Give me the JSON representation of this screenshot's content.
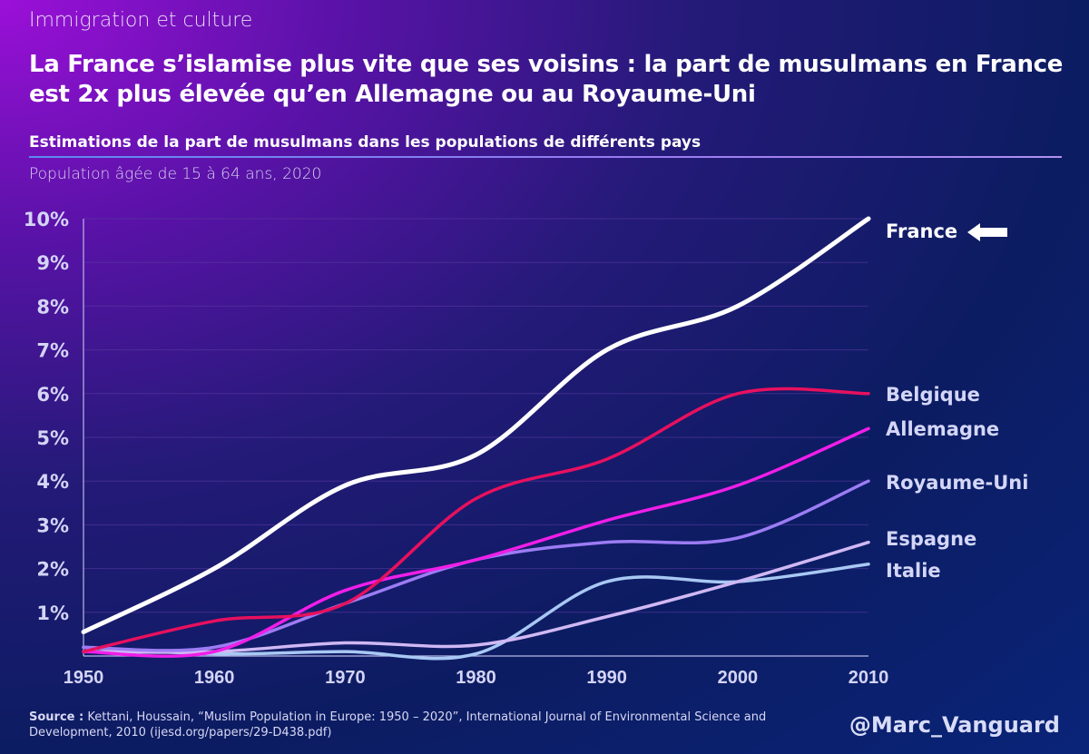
{
  "header": {
    "kicker": "Immigration et culture",
    "title": "La France s’islamise plus vite que ses voisins : la part de musulmans en France est 2x plus élevée qu’en Allemagne ou au Royaume-Uni",
    "subtitle": "Estimations de la part de musulmans dans les populations de différents pays",
    "note": "Population âgée de 15 à 64 ans, 2020"
  },
  "chart_data": {
    "type": "line",
    "x": [
      1950,
      1960,
      1970,
      1980,
      1990,
      2000,
      2010
    ],
    "xlim": [
      1950,
      2010
    ],
    "ylim": [
      0,
      10
    ],
    "y_ticks": [
      "1%",
      "2%",
      "3%",
      "4%",
      "5%",
      "6%",
      "7%",
      "8%",
      "9%",
      "10%"
    ],
    "x_ticks": [
      "1950",
      "1960",
      "1970",
      "1980",
      "1990",
      "2000",
      "2010"
    ],
    "grid": true,
    "legend": "direct labels at right",
    "series": [
      {
        "name": "France",
        "color": "#ffffff",
        "values": [
          0.55,
          2.0,
          3.9,
          4.6,
          7.0,
          8.0,
          10.0
        ],
        "highlight_arrow": true
      },
      {
        "name": "Belgique",
        "color": "#e8105e",
        "values": [
          0.1,
          0.8,
          1.2,
          3.6,
          4.5,
          6.0,
          6.0
        ]
      },
      {
        "name": "Allemagne",
        "color": "#f01ee8",
        "values": [
          0.1,
          0.1,
          1.5,
          2.2,
          3.1,
          3.9,
          5.2
        ]
      },
      {
        "name": "Royaume-Uni",
        "color": "#9c7cf4",
        "values": [
          0.2,
          0.2,
          1.2,
          2.2,
          2.6,
          2.7,
          4.0
        ]
      },
      {
        "name": "Espagne",
        "color": "#d0b8f4",
        "values": [
          0.1,
          0.1,
          0.3,
          0.25,
          0.9,
          1.7,
          2.6
        ]
      },
      {
        "name": "Italie",
        "color": "#a8c8f4",
        "values": [
          0.2,
          0.05,
          0.1,
          0.05,
          1.7,
          1.7,
          2.1
        ]
      }
    ]
  },
  "footer": {
    "source_label": "Source :",
    "source_text": " Kettani, Houssain, “Muslim Population in Europe: 1950 – 2020”, International Journal of Environmental Science and Development, 2010 (ijesd.org/papers/29-D438.pdf)",
    "handle": "@Marc_Vanguard"
  }
}
